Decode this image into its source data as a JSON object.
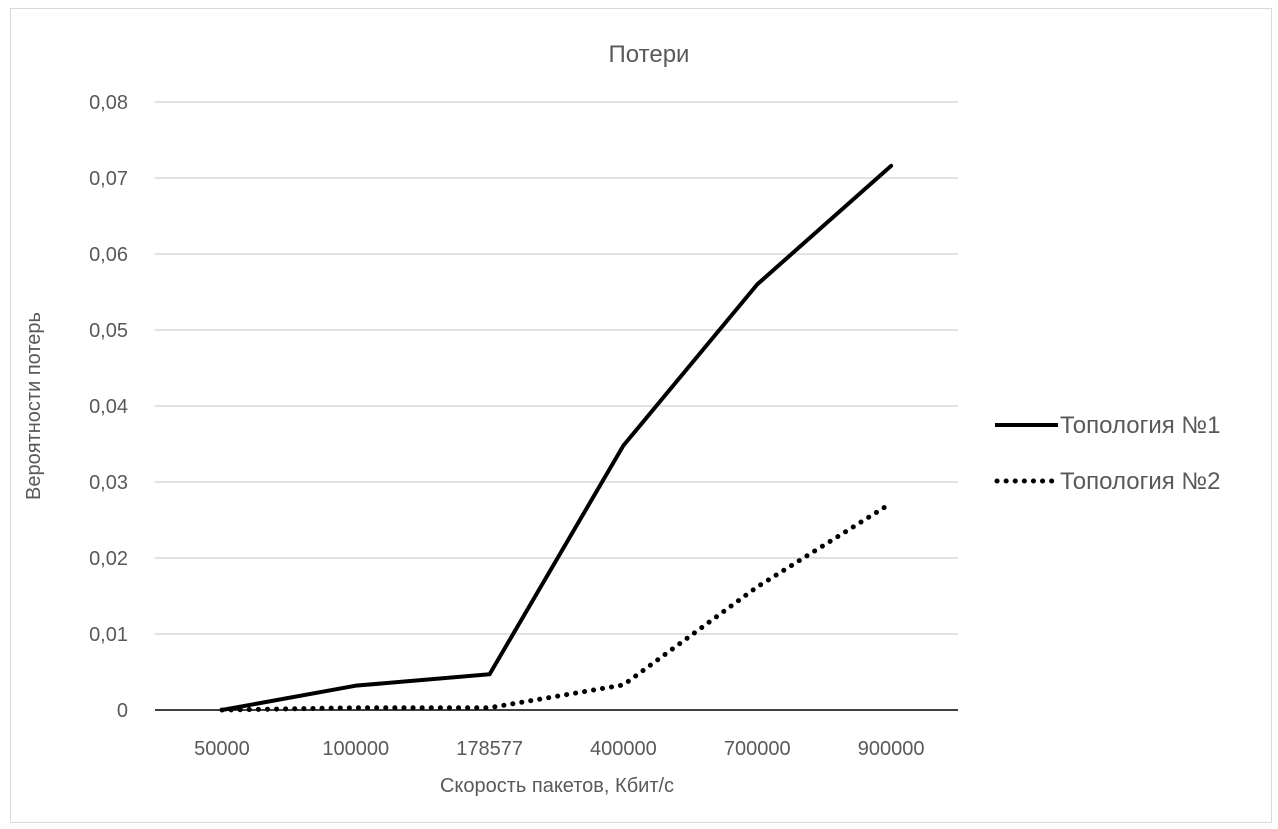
{
  "chart_data": {
    "type": "line",
    "title": "Потери",
    "xlabel": "Скорость пакетов, Кбит/с",
    "ylabel": "Вероятности потерь",
    "categories": [
      "50000",
      "100000",
      "178577",
      "400000",
      "700000",
      "900000"
    ],
    "ylim": [
      0,
      0.08
    ],
    "yticks": [
      "0",
      "0,01",
      "0,02",
      "0,03",
      "0,04",
      "0,05",
      "0,06",
      "0,07",
      "0,08"
    ],
    "grid": true,
    "legend_position": "right",
    "series": [
      {
        "name": "Топология №1",
        "style": "solid",
        "color": "#000000",
        "values": [
          0,
          0.0032,
          0.0047,
          0.0348,
          0.056,
          0.0716
        ]
      },
      {
        "name": "Топология №2",
        "style": "dotted",
        "color": "#000000",
        "values": [
          0,
          0.0003,
          0.0003,
          0.0033,
          0.0162,
          0.0272
        ]
      }
    ]
  }
}
